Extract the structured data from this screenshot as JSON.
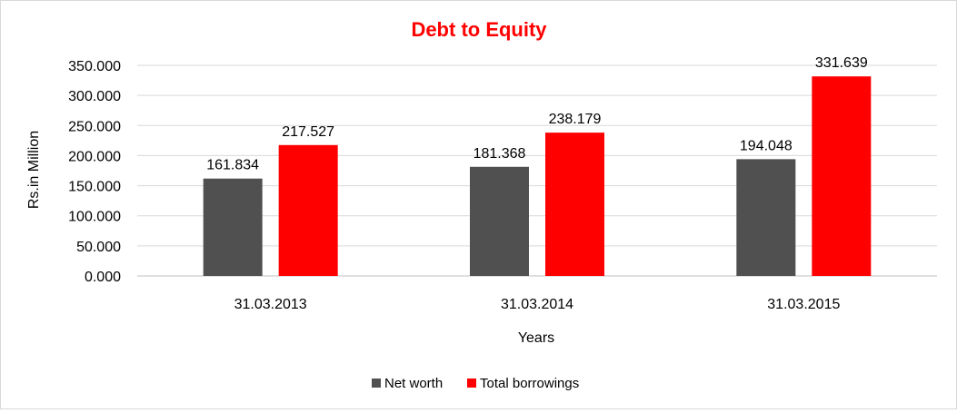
{
  "chart_data": {
    "type": "bar",
    "title": "Debt to Equity",
    "xlabel": "Years",
    "ylabel": "Rs.in Million",
    "categories": [
      "31.03.2013",
      "31.03.2014",
      "31.03.2015"
    ],
    "series": [
      {
        "name": "Net worth",
        "values": [
          161.834,
          181.368,
          194.048
        ],
        "color": "#505050"
      },
      {
        "name": "Total borrowings",
        "values": [
          217.527,
          238.179,
          331.639
        ],
        "color": "#ff0000"
      }
    ],
    "ylim": [
      0,
      350
    ],
    "yticks": [
      "0.000",
      "50.000",
      "100.000",
      "150.000",
      "200.000",
      "250.000",
      "300.000",
      "350.000"
    ],
    "data_labels": [
      [
        "161.834",
        "181.368",
        "194.048"
      ],
      [
        "217.527",
        "238.179",
        "331.639"
      ]
    ],
    "grid": true,
    "legend_position": "bottom",
    "title_color": "#ff0000"
  }
}
